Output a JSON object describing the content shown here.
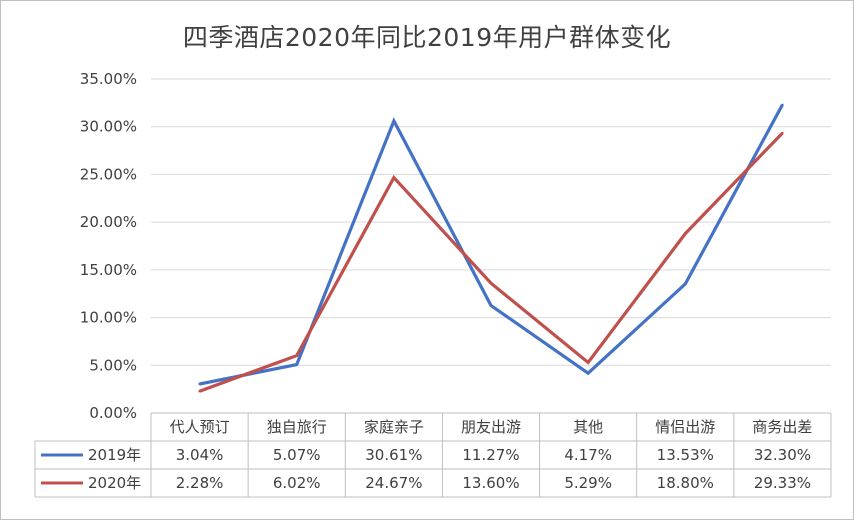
{
  "chart_data": {
    "type": "line",
    "title": "四季酒店2020年同比2019年用户群体变化",
    "categories": [
      "代人预订",
      "独自旅行",
      "家庭亲子",
      "朋友出游",
      "其他",
      "情侣出游",
      "商务出差"
    ],
    "y_ticks": [
      "0.00%",
      "5.00%",
      "10.00%",
      "15.00%",
      "20.00%",
      "25.00%",
      "30.00%",
      "35.00%"
    ],
    "ylim": [
      0,
      35
    ],
    "grid": true,
    "legend": "data-table",
    "series": [
      {
        "name": "2019年",
        "color": "#4472C4",
        "values": [
          3.04,
          5.07,
          30.61,
          11.27,
          4.17,
          13.53,
          32.3
        ],
        "labels": [
          "3.04%",
          "5.07%",
          "30.61%",
          "11.27%",
          "4.17%",
          "13.53%",
          "32.30%"
        ]
      },
      {
        "name": "2020年",
        "color": "#C0504D",
        "values": [
          2.28,
          6.02,
          24.67,
          13.6,
          5.29,
          18.8,
          29.33
        ],
        "labels": [
          "2.28%",
          "6.02%",
          "24.67%",
          "13.60%",
          "5.29%",
          "18.80%",
          "29.33%"
        ]
      }
    ]
  }
}
